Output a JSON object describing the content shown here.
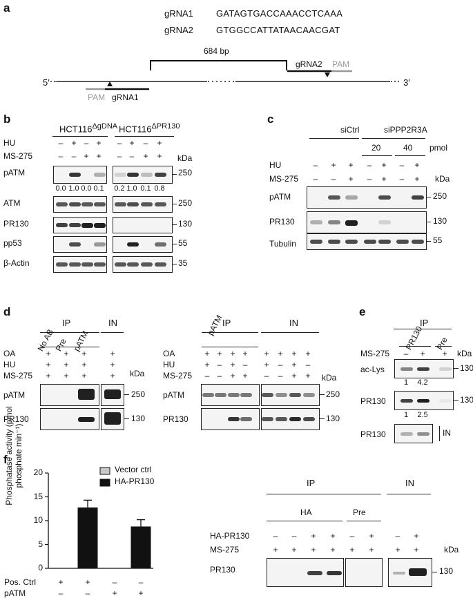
{
  "panel_a": {
    "label": "a",
    "grna1_name": "gRNA1",
    "grna1_seq": "GATAGTGACCAAACCTCAAA",
    "grna2_name": "gRNA2",
    "grna2_seq": "GTGGCCATTATAACAACGAT",
    "deletion_label": "684 bp",
    "five_prime": "5′",
    "three_prime": "3′",
    "pam_label": "PAM",
    "gpam_grna1": "gRNA1",
    "gpam_grna2": "gRNA2",
    "pam2_label": "PAM"
  },
  "panel_b": {
    "label": "b",
    "group1": "HCT116",
    "group1_sup": "ΔgDNA",
    "group2": "HCT116",
    "group2_sup": "ΔPR130",
    "row_labels": [
      "HU",
      "MS-275"
    ],
    "hu": [
      "–",
      "+",
      "–",
      "+",
      "–",
      "+",
      "–",
      "+"
    ],
    "ms": [
      "–",
      "–",
      "+",
      "+",
      "–",
      "–",
      "+",
      "+"
    ],
    "kda": "kDa",
    "blots": [
      "pATM",
      "ATM",
      "PR130",
      "pp53",
      "β-Actin"
    ],
    "mw": [
      "250",
      "250",
      "130",
      "55",
      "35"
    ],
    "quant": [
      "0.0",
      "1.0",
      "0.0",
      "0.1",
      "0.2",
      "1.0",
      "0.1",
      "0.8"
    ]
  },
  "panel_c": {
    "label": "c",
    "group1": "siCtrl",
    "group2": "siPPP2R3A",
    "doses": [
      "20",
      "40"
    ],
    "dose_unit": "pmol",
    "row_labels": [
      "HU",
      "MS-275"
    ],
    "hu": [
      "–",
      "+",
      "+",
      "–",
      "+",
      "–",
      "+"
    ],
    "ms": [
      "–",
      "–",
      "+",
      "–",
      "+",
      "–",
      "+"
    ],
    "kda": "kDa",
    "blots": [
      "pATM",
      "PR130",
      "Tubulin"
    ],
    "mw": [
      "250",
      "130",
      "55"
    ]
  },
  "panel_d": {
    "label": "d",
    "left": {
      "ip": "IP",
      "in": "IN",
      "ip_lanes": [
        "No AB",
        "Pre",
        "pATM"
      ],
      "row_labels": [
        "OA",
        "HU",
        "MS-275"
      ],
      "signs": [
        "+",
        "+",
        "+",
        "+"
      ],
      "kda": "kDa",
      "blots": [
        "pATM",
        "PR130"
      ],
      "mw": [
        "250",
        "130"
      ]
    },
    "right": {
      "ip": "IP",
      "in": "IN",
      "ip_header": "pATM",
      "row_labels": [
        "OA",
        "HU",
        "MS-275"
      ],
      "oa": [
        "+",
        "+",
        "+",
        "+",
        "+",
        "+",
        "+",
        "+"
      ],
      "hu": [
        "+",
        "–",
        "+",
        "–",
        "+",
        "–",
        "+",
        "–"
      ],
      "ms": [
        "–",
        "–",
        "+",
        "+",
        "–",
        "–",
        "+",
        "+"
      ],
      "kda": "kDa",
      "blots": [
        "pATM",
        "PR130"
      ],
      "mw": [
        "250",
        "130"
      ]
    }
  },
  "panel_e": {
    "label": "e",
    "ip": "IP",
    "ip_pr130": "PR130",
    "ip_pre": "Pre",
    "row_label": "MS-275",
    "ms": [
      "–",
      "+",
      "+"
    ],
    "kda": "kDa",
    "blots": [
      "ac-Lys",
      "PR130",
      "PR130"
    ],
    "mw": [
      "130",
      "130"
    ],
    "quant1": [
      "1",
      "4.2"
    ],
    "quant2": [
      "1",
      "2.5"
    ],
    "in_label": "IN"
  },
  "panel_f": {
    "label": "f",
    "chart_data": {
      "type": "bar",
      "ylabel": "Phosphatase activity (pmol phosphate min⁻¹)",
      "ylim": [
        0,
        20
      ],
      "yticks": [
        "0",
        "5",
        "10",
        "15",
        "20"
      ],
      "series": [
        {
          "name": "Vector ctrl",
          "color": "#c8c8c8",
          "values": [
            0,
            0,
            0,
            0
          ],
          "errors": [
            0,
            0,
            0,
            0
          ]
        },
        {
          "name": "HA-PR130",
          "color": "#111111",
          "values": [
            0,
            12.7,
            0,
            8.7
          ],
          "errors": [
            0,
            1.6,
            0,
            1.5
          ]
        }
      ],
      "bar_series": [
        1,
        1,
        1,
        1
      ],
      "row_labels": [
        "Pos. Ctrl",
        "pATM"
      ],
      "pos_ctrl": [
        "+",
        "+",
        "–",
        "–"
      ],
      "patm": [
        "–",
        "–",
        "+",
        "+"
      ]
    },
    "blot": {
      "ip": "IP",
      "in": "IN",
      "ip_ha": "HA",
      "ip_pre": "Pre",
      "row_labels": [
        "HA-PR130",
        "MS-275"
      ],
      "ha": [
        "–",
        "–",
        "+",
        "+",
        "–",
        "+",
        "–",
        "+"
      ],
      "ms": [
        "+",
        "+",
        "+",
        "+",
        "+",
        "+",
        "+",
        "+"
      ],
      "kda": "kDa",
      "blot": "PR130",
      "mw": "130"
    }
  }
}
